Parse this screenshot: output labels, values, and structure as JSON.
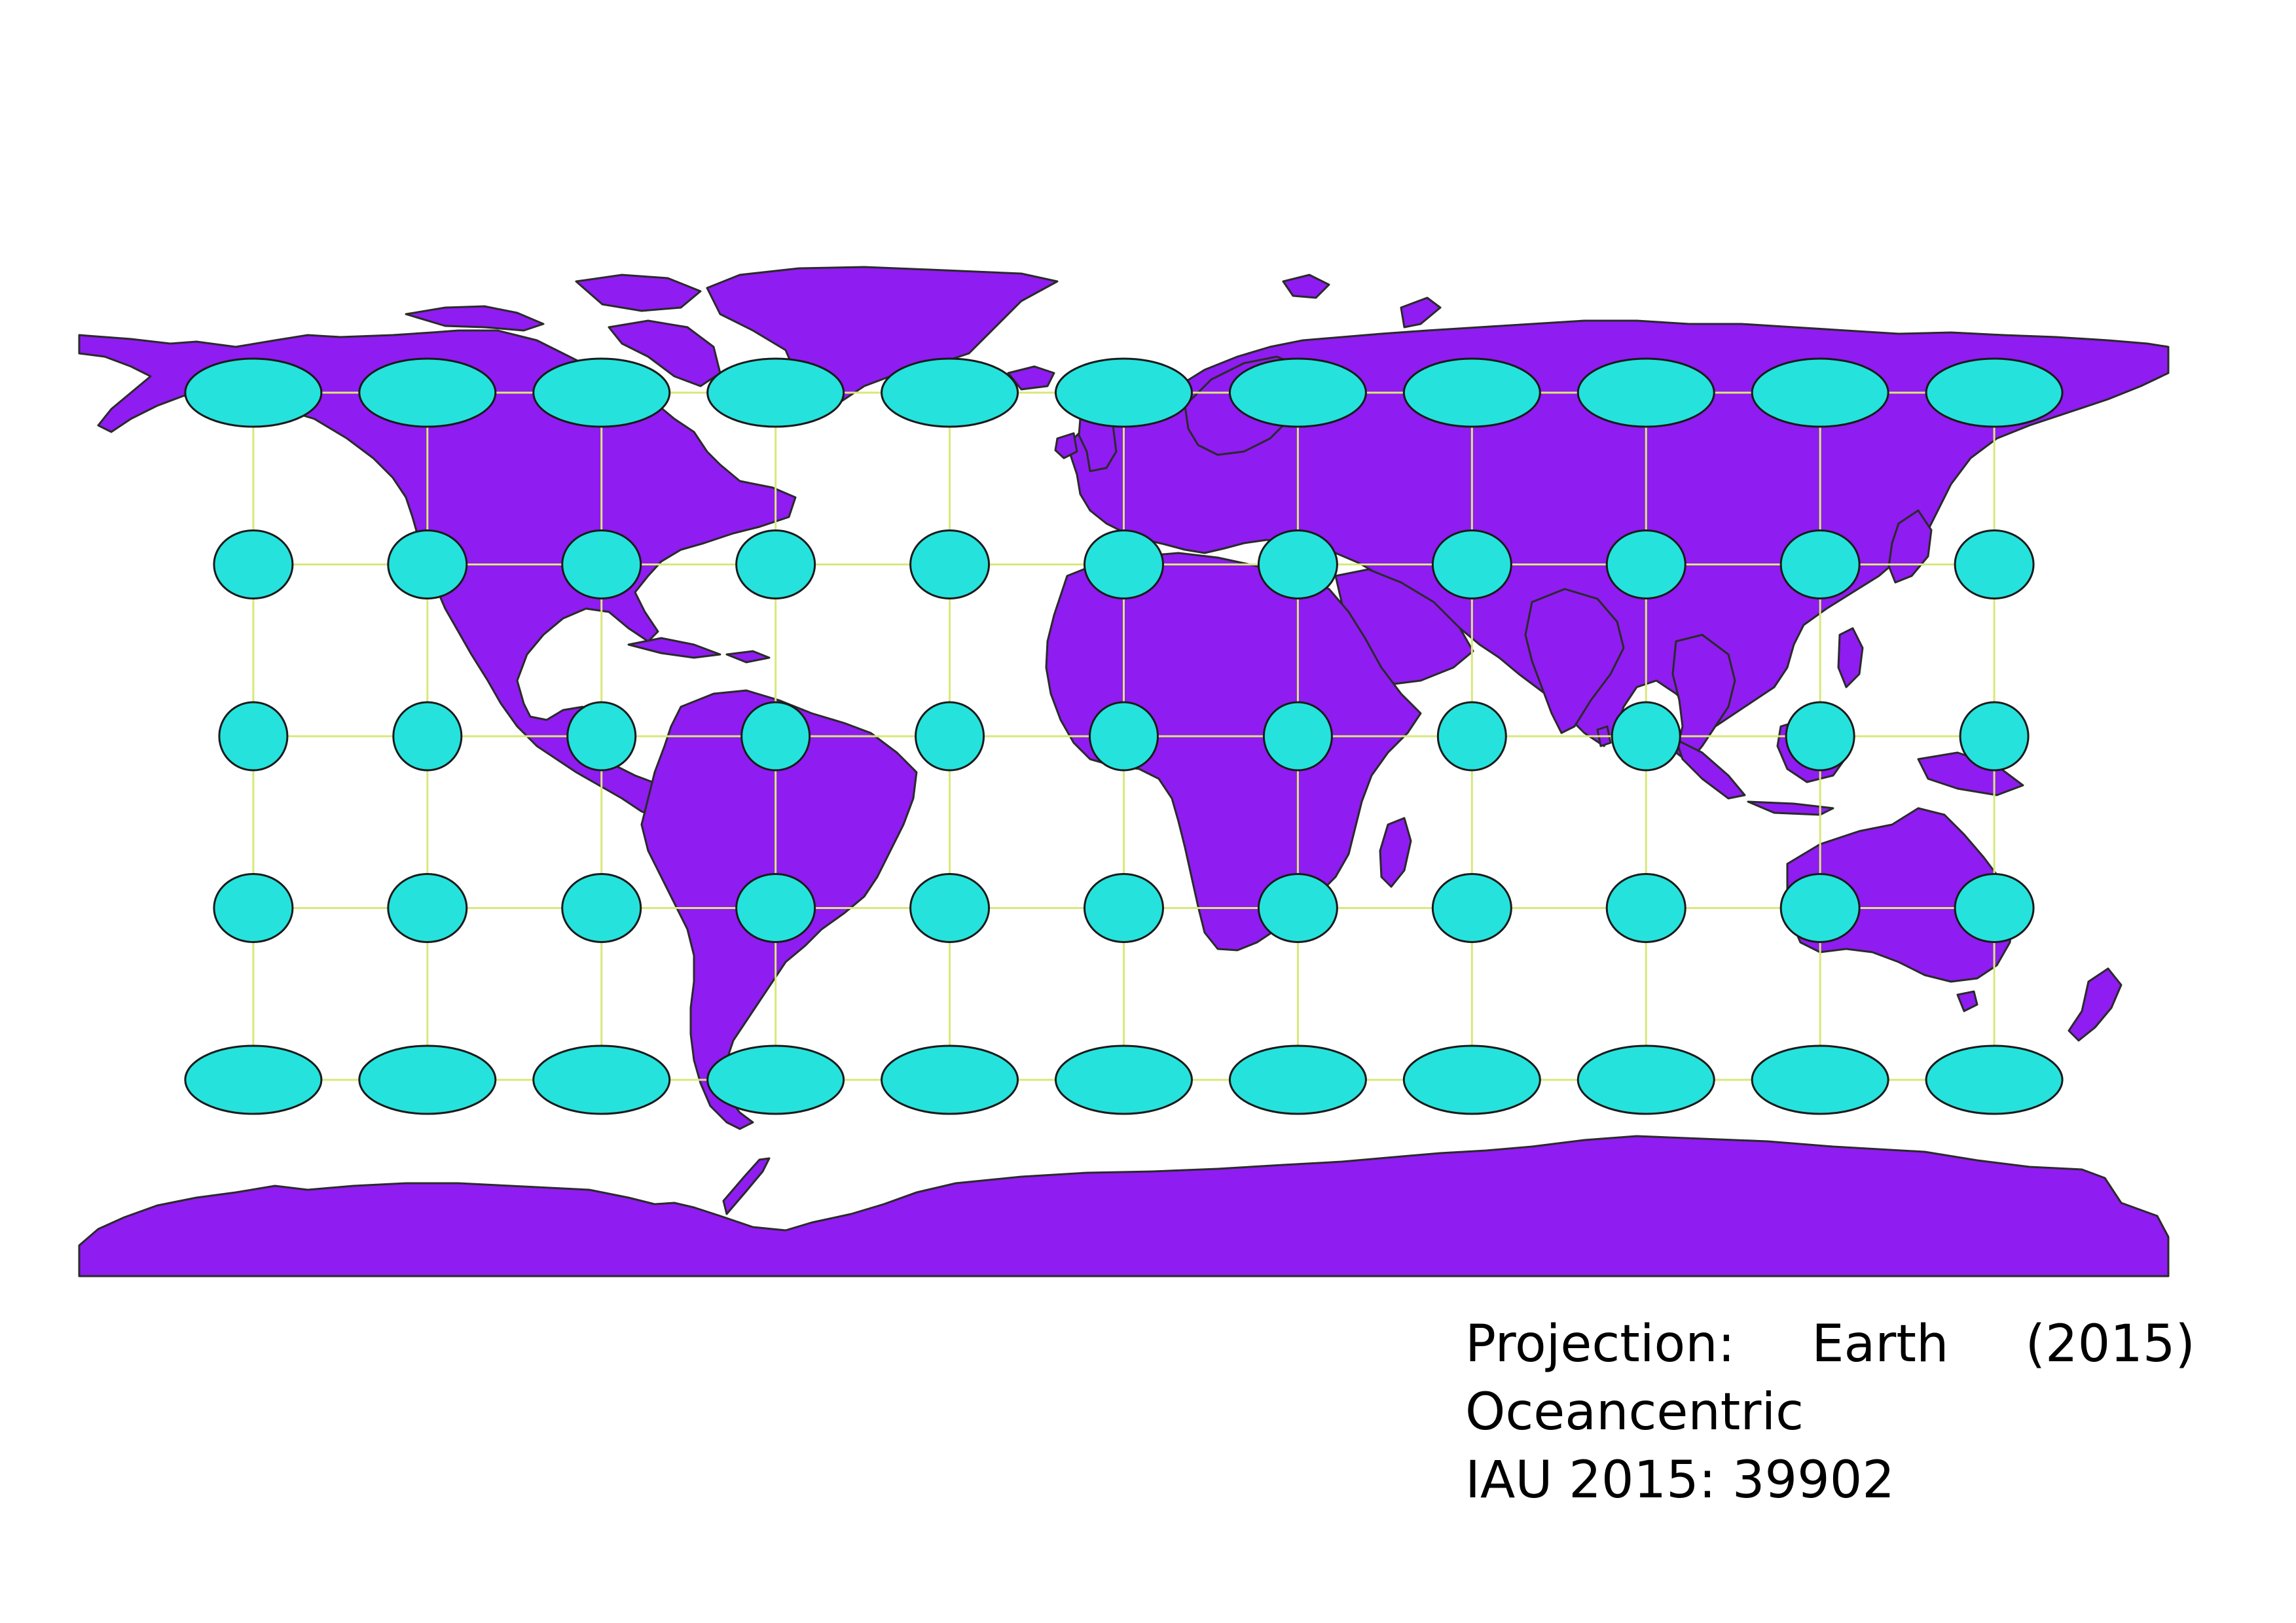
{
  "map": {
    "projection_label": "Projection:",
    "projection_name_word": "Earth",
    "projection_year": "(2015)",
    "projection_name_line2": "Oceancentric",
    "projection_code": "IAU 2015: 39902",
    "projection_type": "equirectangular",
    "colors": {
      "land": "#8f1cf0",
      "land_outline": "#2a2a2a",
      "ellipse_fill": "#26e2dc",
      "ellipse_outline": "#1a1a1a",
      "graticule": "#d8e87a",
      "ocean": "#ffffff"
    },
    "indicatrix": {
      "longitudes": [
        -150,
        -120,
        -90,
        -60,
        -30,
        0,
        30,
        60,
        90,
        120,
        150
      ],
      "latitudes": [
        60,
        30,
        0,
        -30,
        -60
      ]
    }
  }
}
